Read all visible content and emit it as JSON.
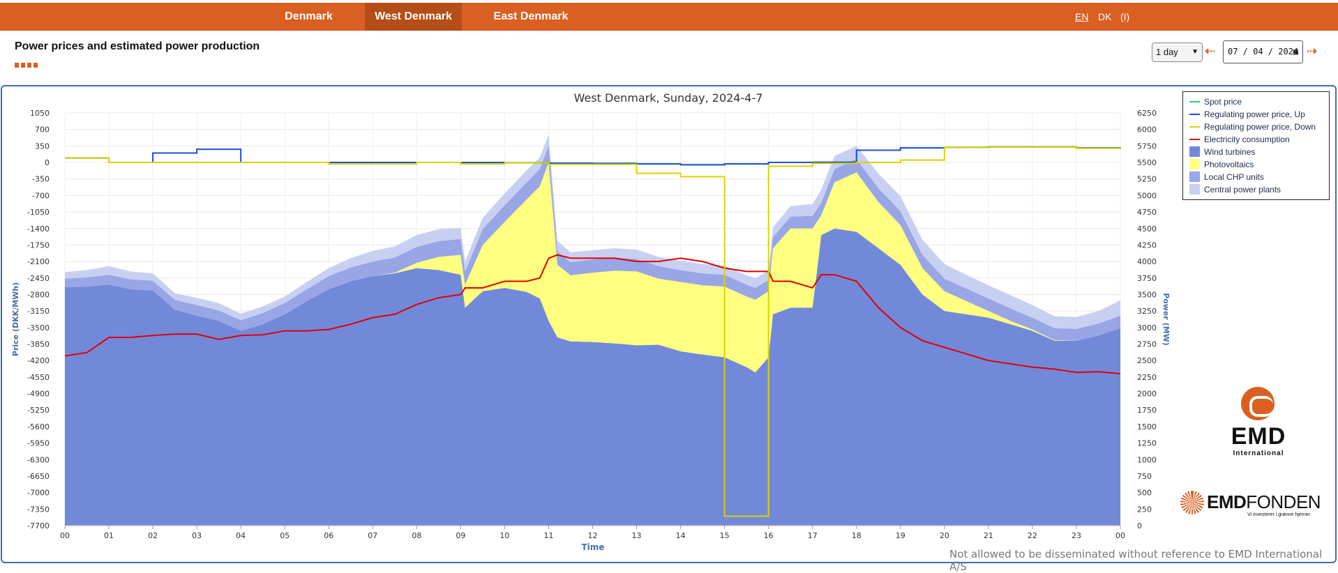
{
  "nav": {
    "tabs": [
      {
        "label": "Denmark",
        "active": false
      },
      {
        "label": "West Denmark",
        "active": true
      },
      {
        "label": "East Denmark",
        "active": false
      }
    ],
    "languages": [
      "EN",
      "DK",
      "(I)"
    ],
    "current_language": "EN"
  },
  "header": {
    "title": "Power prices and estimated power production",
    "range_value": "1 day",
    "date_value": "07 / 04 / 2024"
  },
  "colors": {
    "brand": "#d95f22",
    "spot": "#2ecc71",
    "reg_up": "#1f4fd6",
    "reg_down": "#d9d300",
    "consumption": "#e00000",
    "wind": "#7289d9",
    "pv": "#ffff80",
    "chp": "#98a6e6",
    "central": "#c8d0f2"
  },
  "chart_data": {
    "type": "area",
    "title": "West Denmark, Sunday, 2024-4-7",
    "xlabel": "Time",
    "ylabel_left": "Price (DKK/MWh)",
    "ylabel_right": "Power (MW)",
    "x_ticks": [
      "00",
      "01",
      "02",
      "03",
      "04",
      "05",
      "06",
      "07",
      "08",
      "09",
      "10",
      "11",
      "12",
      "13",
      "14",
      "15",
      "16",
      "17",
      "18",
      "19",
      "20",
      "21",
      "22",
      "23",
      "00"
    ],
    "y_left_ticks": [
      "1050",
      "700",
      "350",
      "0",
      "-350",
      "-700",
      "-1050",
      "-1400",
      "-1750",
      "-2100",
      "-2450",
      "-2800",
      "-3150",
      "-3500",
      "-3850",
      "-4200",
      "-4550",
      "-4900",
      "-5250",
      "-5600",
      "-5950",
      "-6300",
      "-6650",
      "-7000",
      "-7350",
      "-7700"
    ],
    "y_right_ticks": [
      "6250",
      "6000",
      "5750",
      "5500",
      "5250",
      "5000",
      "4750",
      "4500",
      "4250",
      "4000",
      "3750",
      "3500",
      "3250",
      "3000",
      "2750",
      "2500",
      "2250",
      "2000",
      "1750",
      "1500",
      "1250",
      "1000",
      "750",
      "500",
      "250",
      "0"
    ],
    "ylim_left": [
      -7700,
      1050
    ],
    "ylim_right": [
      0,
      6250
    ],
    "grid": true,
    "legend_position": "top-right",
    "hours": [
      0,
      0.5,
      1,
      1.5,
      2,
      2.5,
      3,
      3.5,
      4,
      4.5,
      5,
      5.5,
      6,
      6.5,
      7,
      7.5,
      8,
      8.5,
      9,
      9.1,
      9.5,
      10,
      10.5,
      10.8,
      11,
      11.2,
      11.5,
      12,
      12.5,
      13,
      13.5,
      14,
      14.5,
      15,
      15.5,
      15.7,
      16,
      16.1,
      16.5,
      17,
      17.2,
      17.5,
      18,
      18.5,
      19,
      19.5,
      20,
      20.5,
      21,
      21.5,
      22,
      22.5,
      23,
      23.5,
      24
    ],
    "series": [
      {
        "name": "Wind turbines",
        "unit": "MW",
        "values": [
          3610,
          3620,
          3650,
          3580,
          3560,
          3270,
          3180,
          3100,
          2950,
          3050,
          3200,
          3400,
          3580,
          3700,
          3780,
          3820,
          3900,
          3870,
          3800,
          3300,
          3550,
          3600,
          3540,
          3440,
          3100,
          2850,
          2790,
          2780,
          2760,
          2730,
          2740,
          2640,
          2590,
          2550,
          2400,
          2320,
          2550,
          3200,
          3300,
          3300,
          4400,
          4500,
          4450,
          4200,
          3950,
          3500,
          3250,
          3200,
          3150,
          3050,
          2950,
          2800,
          2800,
          2880,
          2990
        ]
      },
      {
        "name": "Photovoltaics",
        "unit": "MW",
        "values": [
          0,
          0,
          0,
          0,
          0,
          0,
          0,
          0,
          0,
          0,
          0,
          0,
          0,
          0,
          0,
          10,
          80,
          200,
          300,
          350,
          700,
          1000,
          1400,
          1700,
          2400,
          1100,
          1000,
          1050,
          1100,
          1120,
          1000,
          1050,
          1050,
          1070,
          1070,
          1100,
          1000,
          1000,
          1200,
          1200,
          300,
          700,
          900,
          700,
          600,
          400,
          300,
          200,
          100,
          50,
          20,
          10,
          0,
          0,
          0
        ]
      },
      {
        "name": "Local CHP units",
        "unit": "MW",
        "values": [
          130,
          140,
          150,
          150,
          150,
          150,
          160,
          160,
          160,
          170,
          170,
          180,
          200,
          210,
          220,
          230,
          240,
          240,
          240,
          200,
          240,
          250,
          260,
          260,
          250,
          200,
          200,
          200,
          200,
          190,
          190,
          180,
          180,
          180,
          180,
          180,
          170,
          170,
          180,
          190,
          190,
          200,
          200,
          210,
          210,
          200,
          190,
          190,
          190,
          190,
          180,
          180,
          180,
          180,
          190
        ]
      },
      {
        "name": "Central power plants",
        "unit": "MW",
        "values": [
          100,
          110,
          130,
          120,
          110,
          100,
          110,
          110,
          100,
          100,
          100,
          110,
          120,
          140,
          160,
          170,
          180,
          180,
          170,
          150,
          170,
          180,
          180,
          180,
          170,
          160,
          150,
          140,
          140,
          140,
          140,
          140,
          140,
          140,
          140,
          150,
          140,
          150,
          160,
          180,
          200,
          200,
          200,
          220,
          230,
          230,
          220,
          210,
          200,
          200,
          190,
          180,
          180,
          190,
          230
        ]
      },
      {
        "name": "Electricity consumption",
        "unit": "MW",
        "values": [
          2570,
          2620,
          2850,
          2850,
          2880,
          2900,
          2900,
          2820,
          2880,
          2890,
          2950,
          2950,
          2970,
          3050,
          3150,
          3200,
          3350,
          3450,
          3500,
          3600,
          3600,
          3700,
          3700,
          3750,
          4050,
          4100,
          4050,
          4050,
          4050,
          4000,
          4000,
          4050,
          4000,
          3900,
          3850,
          3850,
          3850,
          3700,
          3700,
          3600,
          3800,
          3800,
          3700,
          3300,
          3000,
          2800,
          2700,
          2600,
          2500,
          2450,
          2400,
          2370,
          2320,
          2330,
          2300
        ]
      }
    ],
    "price_series": [
      {
        "name": "Spot price",
        "unit": "DKK/MWh",
        "steps": [
          95,
          0,
          0,
          0,
          0,
          0,
          0,
          0,
          0,
          -2,
          -5,
          -15,
          -20,
          -30,
          -50,
          -30,
          0,
          5,
          260,
          310,
          320,
          330,
          330,
          310,
          290
        ]
      },
      {
        "name": "Regulating power price, Up",
        "unit": "DKK/MWh",
        "steps": [
          95,
          0,
          200,
          280,
          0,
          0,
          0,
          0,
          0,
          -2,
          -5,
          -15,
          -20,
          -30,
          -50,
          -30,
          0,
          5,
          260,
          310,
          320,
          330,
          330,
          310,
          290
        ]
      },
      {
        "name": "Regulating power price, Down",
        "unit": "DKK/MWh",
        "steps": [
          95,
          0,
          0,
          0,
          0,
          0,
          -30,
          -30,
          0,
          -30,
          -5,
          -40,
          -40,
          -230,
          -300,
          -7500,
          -80,
          -20,
          0,
          50,
          320,
          330,
          330,
          300,
          290
        ]
      }
    ]
  },
  "legend": {
    "items": [
      {
        "label": "Spot price",
        "kind": "line",
        "color_key": "spot"
      },
      {
        "label": "Regulating power price, Up",
        "kind": "line",
        "color_key": "reg_up"
      },
      {
        "label": "Regulating power price, Down",
        "kind": "line",
        "color_key": "reg_down"
      },
      {
        "label": "Electricity consumption",
        "kind": "line",
        "color_key": "consumption"
      },
      {
        "label": "Wind turbines",
        "kind": "area",
        "color_key": "wind"
      },
      {
        "label": "Photovoltaics",
        "kind": "area",
        "color_key": "pv"
      },
      {
        "label": "Local CHP units",
        "kind": "area",
        "color_key": "chp"
      },
      {
        "label": "Central power plants",
        "kind": "area",
        "color_key": "central"
      }
    ]
  },
  "logos": {
    "emd_main": "EMD",
    "emd_sub": "International",
    "fonden_bold": "EMD",
    "fonden_rest": "FONDEN",
    "fonden_tag": "Vi investerer i grønne hjerner"
  },
  "footer": {
    "disclaimer": "Not allowed to be disseminated without reference to EMD International A/S"
  }
}
